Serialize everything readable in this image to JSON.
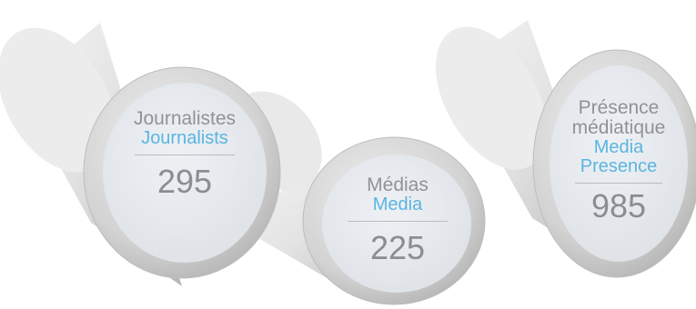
{
  "cylinders": [
    {
      "label_fr": "Journalistes",
      "label_en": "Journalists",
      "value": "295"
    },
    {
      "label_fr": "Médias",
      "label_en": "Media",
      "value": "225"
    },
    {
      "label_fr": "Présence médiatique",
      "label_en": "Media Presence",
      "value": "985"
    }
  ],
  "colors": {
    "body_light": "#f1f1f1",
    "body_dark": "#b9b9b9",
    "cap_face": "#e6e9ed",
    "rim": "#c9c9c9",
    "label_fr": "#8f9397",
    "label_en": "#5ab5e2",
    "value": "#8a8e92"
  }
}
